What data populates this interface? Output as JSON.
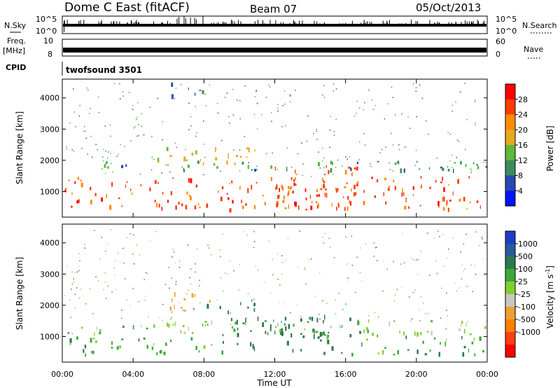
{
  "header": {
    "title": "Dome C East (fitACF)",
    "beam": "Beam 07",
    "date": "05/Oct/2013"
  },
  "panels": {
    "nsky": {
      "label": "N.Sky",
      "ticks": [
        "10^5",
        "10^0"
      ],
      "right_label": "N.Search",
      "right_ticks": [
        "10^5",
        "10^0"
      ]
    },
    "freq": {
      "label_line1": "Freq.",
      "label_line2": "[MHz]",
      "ticks": [
        "10",
        "8"
      ],
      "right_label": "Nave",
      "right_ticks": [
        "60",
        "0"
      ]
    },
    "cpid": {
      "label": "CPID",
      "text": "twofsound 3501"
    }
  },
  "colorbars": {
    "power": {
      "label": "Power [dB]",
      "ticks": [
        "28",
        "24",
        "20",
        "16",
        "12",
        "8",
        "4"
      ],
      "colors": [
        "#ff0000",
        "#ff3a00",
        "#ff8c00",
        "#e8a820",
        "#5fb83a",
        "#3c8c5a",
        "#2848b4",
        "#0014ff"
      ]
    },
    "velocity": {
      "label": "Velocity [m s",
      "label_sup": "-1",
      "label_end": "]",
      "ticks": [
        "1000",
        "500",
        "100",
        "25",
        "-25",
        "-100",
        "-500",
        "-1000"
      ],
      "colors": [
        "#1e3cc8",
        "#285aa0",
        "#2e7850",
        "#3ca83c",
        "#80d030",
        "#c8c8c0",
        "#f0a030",
        "#ff8000",
        "#ff4010",
        "#ff0000"
      ]
    }
  },
  "chart_data": [
    {
      "type": "heatmap",
      "title": "",
      "quantity": "Power",
      "xlabel": "",
      "ylabel": "Slant Range [km]",
      "xlim": [
        "00:00",
        "00:00"
      ],
      "ylim": [
        180,
        4600
      ],
      "y_ticks": [
        1000,
        2000,
        3000,
        4000
      ],
      "x_ticks": [
        "00:00",
        "04:00",
        "08:00",
        "12:00",
        "16:00",
        "20:00",
        "00:00"
      ],
      "bands": [
        {
          "t_start": 0,
          "t_end": 24,
          "range_low": 450,
          "range_high": 1500,
          "power_db": 26,
          "note_color": "red/orange"
        },
        {
          "t_start": 12,
          "t_end": 17,
          "range_low": 500,
          "range_high": 1850,
          "power_db": 24
        },
        {
          "t_start": 5,
          "t_end": 11,
          "range_low": 1800,
          "range_high": 2450,
          "power_db": 17
        },
        {
          "t_start": 2,
          "t_end": 24,
          "range_low": 1700,
          "range_high": 2000,
          "power_db": 10
        },
        {
          "t_start": 6,
          "t_end": 8,
          "range_low": 4000,
          "range_high": 4500,
          "power_db": 8
        }
      ]
    },
    {
      "type": "heatmap",
      "title": "",
      "quantity": "Velocity",
      "xlabel": "Time UT",
      "ylabel": "Slant Range [km]",
      "xlim": [
        "00:00",
        "00:00"
      ],
      "ylim": [
        180,
        4600
      ],
      "y_ticks": [
        1000,
        2000,
        3000,
        4000
      ],
      "x_ticks": [
        "00:00",
        "04:00",
        "08:00",
        "12:00",
        "16:00",
        "20:00",
        "00:00"
      ],
      "bands": [
        {
          "t_start": 0,
          "t_end": 24,
          "range_low": 1050,
          "range_high": 1550,
          "velocity": 0
        },
        {
          "t_start": 0,
          "t_end": 9,
          "range_low": 450,
          "range_high": 1050,
          "velocity": 60
        },
        {
          "t_start": 9,
          "t_end": 17,
          "range_low": 450,
          "range_high": 1700,
          "velocity": 150
        },
        {
          "t_start": 17,
          "t_end": 24,
          "range_low": 450,
          "range_high": 1050,
          "velocity": 60
        },
        {
          "t_start": 6,
          "t_end": 9,
          "range_low": 1850,
          "range_high": 2450,
          "velocity": -150
        },
        {
          "t_start": 8,
          "t_end": 11,
          "range_low": 1800,
          "range_high": 2250,
          "velocity": 150
        }
      ]
    }
  ]
}
